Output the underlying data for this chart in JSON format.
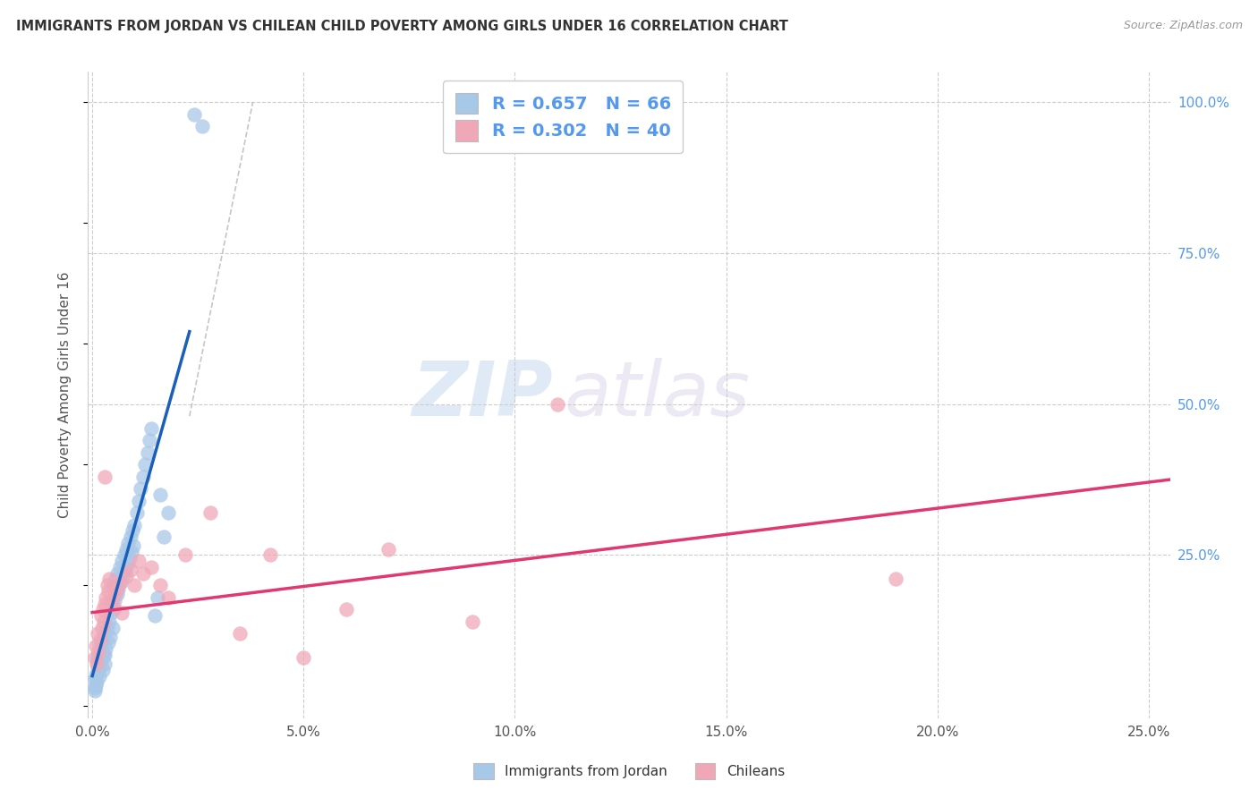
{
  "title": "IMMIGRANTS FROM JORDAN VS CHILEAN CHILD POVERTY AMONG GIRLS UNDER 16 CORRELATION CHART",
  "source": "Source: ZipAtlas.com",
  "ylabel": "Child Poverty Among Girls Under 16",
  "xlim": [
    -0.001,
    0.255
  ],
  "ylim": [
    -0.02,
    1.05
  ],
  "xtick_labels": [
    "0.0%",
    "5.0%",
    "10.0%",
    "15.0%",
    "20.0%",
    "25.0%"
  ],
  "xtick_values": [
    0,
    0.05,
    0.1,
    0.15,
    0.2,
    0.25
  ],
  "ytick_labels_right": [
    "100.0%",
    "75.0%",
    "50.0%",
    "25.0%"
  ],
  "ytick_values_right": [
    1.0,
    0.75,
    0.5,
    0.25
  ],
  "r_jordan": 0.657,
  "n_jordan": 66,
  "r_chilean": 0.302,
  "n_chilean": 40,
  "legend_jordan": "Immigrants from Jordan",
  "legend_chilean": "Chileans",
  "color_jordan": "#a8c8e8",
  "color_chilean": "#f0a8b8",
  "line_color_jordan": "#1a5fba",
  "line_color_chilean": "#e03870",
  "watermark_zip": "ZIP",
  "watermark_atlas": "atlas",
  "grid_color": "#cccccc",
  "title_color": "#333333",
  "source_color": "#999999",
  "right_tick_color": "#5599ee",
  "legend_text_color": "#5599ee",
  "jordan_x": [
    0.0008,
    0.001,
    0.0012,
    0.0015,
    0.0018,
    0.002,
    0.0022,
    0.0025,
    0.0028,
    0.003,
    0.003,
    0.0032,
    0.0035,
    0.0038,
    0.004,
    0.0042,
    0.0045,
    0.0048,
    0.005,
    0.005,
    0.0052,
    0.0055,
    0.0058,
    0.006,
    0.0062,
    0.0065,
    0.0068,
    0.007,
    0.0072,
    0.0075,
    0.0078,
    0.008,
    0.0082,
    0.0085,
    0.0088,
    0.009,
    0.0092,
    0.0095,
    0.0098,
    0.01,
    0.0105,
    0.011,
    0.0115,
    0.012,
    0.0125,
    0.013,
    0.0135,
    0.014,
    0.0148,
    0.0155,
    0.016,
    0.017,
    0.018,
    0.0005,
    0.0006,
    0.0007,
    0.0009,
    0.0011,
    0.0013,
    0.0016,
    0.0019,
    0.0023,
    0.0026,
    0.0029,
    0.024,
    0.026
  ],
  "jordan_y": [
    0.05,
    0.04,
    0.08,
    0.06,
    0.1,
    0.075,
    0.09,
    0.11,
    0.085,
    0.07,
    0.12,
    0.095,
    0.13,
    0.105,
    0.14,
    0.115,
    0.155,
    0.13,
    0.16,
    0.2,
    0.175,
    0.21,
    0.185,
    0.22,
    0.195,
    0.23,
    0.205,
    0.24,
    0.215,
    0.25,
    0.225,
    0.26,
    0.235,
    0.27,
    0.245,
    0.28,
    0.255,
    0.29,
    0.265,
    0.3,
    0.32,
    0.34,
    0.36,
    0.38,
    0.4,
    0.42,
    0.44,
    0.46,
    0.15,
    0.18,
    0.35,
    0.28,
    0.32,
    0.03,
    0.025,
    0.045,
    0.035,
    0.055,
    0.065,
    0.05,
    0.07,
    0.08,
    0.06,
    0.085,
    0.98,
    0.96
  ],
  "chilean_x": [
    0.0005,
    0.0008,
    0.001,
    0.0012,
    0.0015,
    0.0018,
    0.002,
    0.0022,
    0.0025,
    0.0028,
    0.003,
    0.0032,
    0.0035,
    0.0038,
    0.004,
    0.0045,
    0.005,
    0.0055,
    0.006,
    0.0065,
    0.007,
    0.008,
    0.009,
    0.01,
    0.011,
    0.012,
    0.014,
    0.016,
    0.018,
    0.022,
    0.028,
    0.035,
    0.042,
    0.05,
    0.06,
    0.07,
    0.09,
    0.11,
    0.19,
    0.003
  ],
  "chilean_y": [
    0.08,
    0.1,
    0.07,
    0.12,
    0.09,
    0.11,
    0.15,
    0.13,
    0.16,
    0.14,
    0.17,
    0.18,
    0.2,
    0.19,
    0.21,
    0.175,
    0.165,
    0.185,
    0.195,
    0.205,
    0.155,
    0.215,
    0.225,
    0.2,
    0.24,
    0.22,
    0.23,
    0.2,
    0.18,
    0.25,
    0.32,
    0.12,
    0.25,
    0.08,
    0.16,
    0.26,
    0.14,
    0.5,
    0.21,
    0.38
  ],
  "jordan_line_x": [
    0.0,
    0.023
  ],
  "jordan_line_y": [
    0.05,
    0.62
  ],
  "chilean_line_x": [
    0.0,
    0.255
  ],
  "chilean_line_y": [
    0.155,
    0.375
  ],
  "diag_line_x": [
    0.023,
    0.038
  ],
  "diag_line_y": [
    0.48,
    1.0
  ]
}
